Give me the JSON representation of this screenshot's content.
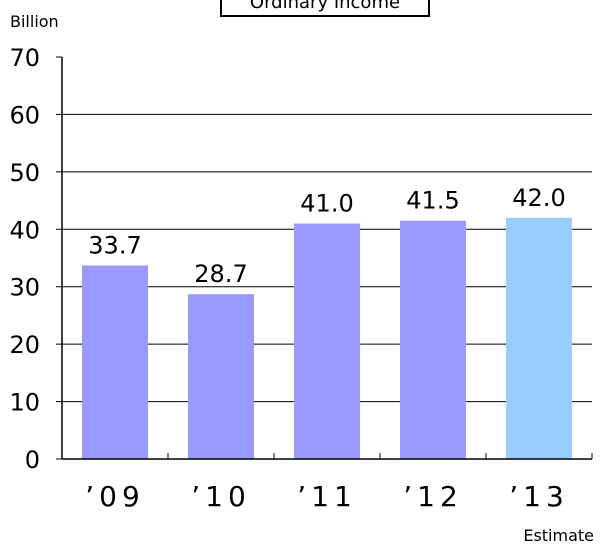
{
  "chart_data": {
    "type": "bar",
    "title": "Ordinary Income",
    "ylabel": "Billion",
    "xnote": "Estimate",
    "categories": [
      "’09",
      "’10",
      "’11",
      "’12",
      "’13"
    ],
    "values": [
      33.7,
      28.7,
      41.0,
      41.5,
      42.0
    ],
    "value_labels": [
      "33.7",
      "28.7",
      "41.0",
      "41.5",
      "42.0"
    ],
    "ylim": [
      0,
      70
    ],
    "yticks": [
      0,
      10,
      20,
      30,
      40,
      50,
      60,
      70
    ],
    "grid": true,
    "colors": {
      "actual": "#9999ff",
      "estimate": "#99ccff",
      "axis": "#000000",
      "grid": "#000000"
    },
    "estimate_index": 4
  }
}
